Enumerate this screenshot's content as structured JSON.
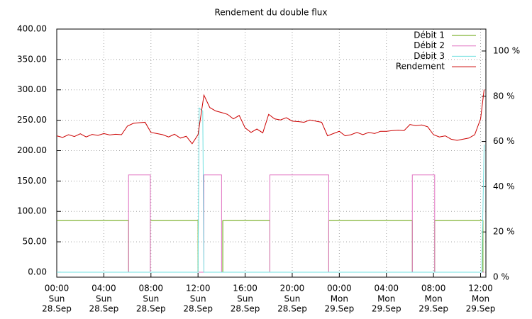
{
  "chart_data": {
    "type": "line",
    "title": "Rendement du double flux",
    "xlim": [
      0,
      36.45
    ],
    "ylim": [
      -8.2,
      400
    ],
    "y2lim": [
      0,
      109.7
    ],
    "grid": true,
    "legend": "top-right",
    "xticks": [
      {
        "value": 0,
        "label": "00:00"
      },
      {
        "value": 4,
        "label": "04:00"
      },
      {
        "value": 8,
        "label": "08:00"
      },
      {
        "value": 12,
        "label": "12:00"
      },
      {
        "value": 16,
        "label": "16:00"
      },
      {
        "value": 20,
        "label": "20:00"
      },
      {
        "value": 24,
        "label": "00:00"
      },
      {
        "value": 28,
        "label": "04:00"
      },
      {
        "value": 32,
        "label": "08:00"
      },
      {
        "value": 36,
        "label": "12:00"
      }
    ],
    "xtick_sublabels": [
      [
        "Sun",
        "28.Sep"
      ],
      [
        "Sun",
        "28.Sep"
      ],
      [
        "Sun",
        "28.Sep"
      ],
      [
        "Sun",
        "28.Sep"
      ],
      [
        "Sun",
        "28.Sep"
      ],
      [
        "Sun",
        "28.Sep"
      ],
      [
        "Mon",
        "29.Sep"
      ],
      [
        "Mon",
        "29.Sep"
      ],
      [
        "Mon",
        "29.Sep"
      ],
      [
        "Mon",
        "29.Sep"
      ]
    ],
    "yticks": [
      {
        "value": 0,
        "label": "0.00"
      },
      {
        "value": 50,
        "label": "50.00"
      },
      {
        "value": 100,
        "label": "100.00"
      },
      {
        "value": 150,
        "label": "150.00"
      },
      {
        "value": 200,
        "label": "200.00"
      },
      {
        "value": 250,
        "label": "250.00"
      },
      {
        "value": 300,
        "label": "300.00"
      },
      {
        "value": 350,
        "label": "350.00"
      },
      {
        "value": 400,
        "label": "400.00"
      }
    ],
    "y2ticks": [
      {
        "value": 0,
        "label": "0 %"
      },
      {
        "value": 20,
        "label": "20 %"
      },
      {
        "value": 40,
        "label": "40 %"
      },
      {
        "value": 60,
        "label": "60 %"
      },
      {
        "value": 80,
        "label": "80 %"
      },
      {
        "value": 100,
        "label": "100 %"
      }
    ],
    "series": [
      {
        "name": "Débit 1",
        "color": "#60a000",
        "x": [
          0,
          6.1,
          6.1,
          7.95,
          7.95,
          12.0,
          12.0,
          14.1,
          14.1,
          18.1,
          18.1,
          23.1,
          23.1,
          30.2,
          30.2,
          32.1,
          32.1,
          36.2,
          36.2,
          36.3
        ],
        "values": [
          85,
          85,
          0,
          0,
          85,
          85,
          0,
          0,
          85,
          85,
          0,
          0,
          85,
          85,
          0,
          0,
          85,
          85,
          0,
          0
        ]
      },
      {
        "name": "Débit 2",
        "color": "#e070c0",
        "x": [
          0,
          6.1,
          6.1,
          7.95,
          7.95,
          12.5,
          12.5,
          14.0,
          14.0,
          18.1,
          18.1,
          23.1,
          23.1,
          30.2,
          30.2,
          32.1,
          32.1,
          36.3
        ],
        "values": [
          0,
          0,
          160,
          160,
          0,
          0,
          160,
          160,
          0,
          0,
          160,
          160,
          0,
          0,
          160,
          160,
          0,
          0
        ]
      },
      {
        "name": "Débit 3",
        "color": "#70e0e0",
        "x": [
          0,
          12.0,
          12.1,
          12.4,
          12.5,
          36.1,
          36.3
        ],
        "values": [
          0,
          0,
          270,
          265,
          0,
          0,
          210
        ]
      },
      {
        "name": "Rendement",
        "color": "#cc0000",
        "axis": "y2",
        "x": [
          0,
          0.5,
          1,
          1.5,
          2,
          2.5,
          3,
          3.5,
          4,
          4.5,
          5,
          5.5,
          6,
          6.5,
          7,
          7.5,
          8,
          8.5,
          9,
          9.5,
          10,
          10.5,
          11,
          11.5,
          12,
          12.5,
          13,
          13.5,
          14,
          14.5,
          15,
          15.5,
          16,
          16.5,
          17,
          17.5,
          18,
          18.5,
          19,
          19.5,
          20,
          20.5,
          21,
          21.5,
          22,
          22.5,
          23,
          23.5,
          24,
          24.5,
          25,
          25.5,
          26,
          26.5,
          27,
          27.5,
          28,
          28.5,
          29,
          29.5,
          30,
          30.5,
          31,
          31.5,
          32,
          32.5,
          33,
          33.5,
          34,
          34.5,
          35,
          35.5,
          36,
          36.3
        ],
        "values": [
          62.5,
          61.8,
          63.0,
          62.2,
          63.4,
          62.0,
          63.1,
          62.7,
          63.5,
          62.9,
          63.2,
          63.0,
          66.8,
          68.0,
          68.3,
          68.5,
          64.0,
          63.5,
          63.0,
          62.0,
          63.2,
          61.5,
          62.3,
          59.0,
          63.0,
          80.5,
          75.0,
          73.5,
          72.8,
          72.0,
          70.0,
          71.5,
          66.0,
          64.0,
          65.5,
          63.8,
          72.0,
          70.0,
          69.5,
          70.5,
          69.0,
          68.8,
          68.5,
          69.5,
          69.0,
          68.5,
          62.5,
          63.5,
          64.5,
          62.5,
          63.0,
          64.0,
          63.0,
          64.0,
          63.5,
          64.5,
          64.5,
          64.8,
          65.0,
          64.8,
          67.5,
          67.0,
          67.3,
          66.5,
          63.0,
          62.0,
          62.5,
          61.0,
          60.5,
          61.0,
          61.5,
          63.0,
          70.0,
          83.0
        ]
      }
    ]
  }
}
